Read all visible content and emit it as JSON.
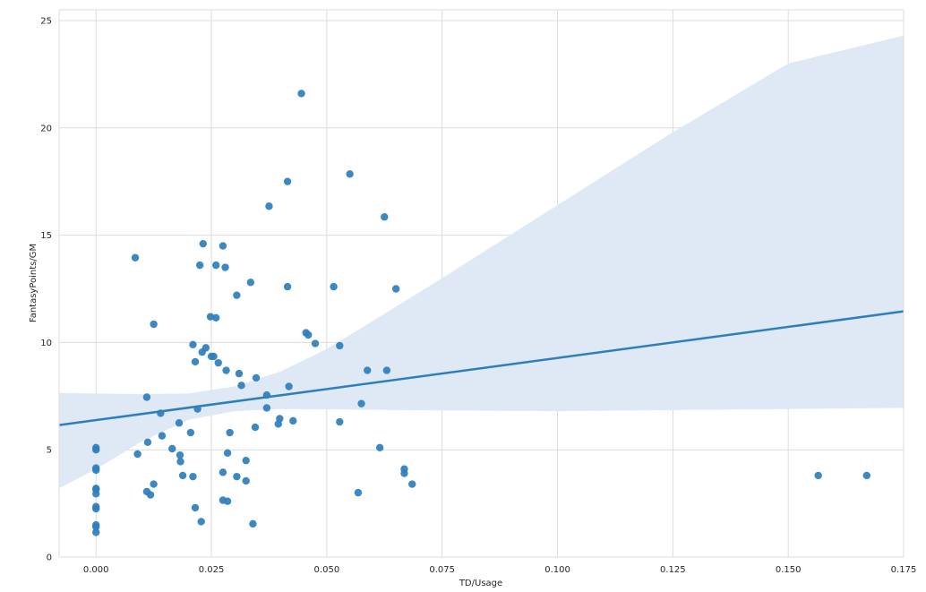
{
  "chart_data": {
    "type": "scatter",
    "title": "",
    "xlabel": "TD/Usage",
    "ylabel": "FantasyPoints/GM",
    "xlim": [
      -0.008,
      0.175
    ],
    "ylim": [
      0,
      25.5
    ],
    "xticks": [
      0.0,
      0.025,
      0.05,
      0.075,
      0.1,
      0.125,
      0.15,
      0.175
    ],
    "xtick_labels": [
      "0.000",
      "0.025",
      "0.050",
      "0.075",
      "0.100",
      "0.125",
      "0.150",
      "0.175"
    ],
    "yticks": [
      0,
      5,
      10,
      15,
      20,
      25
    ],
    "ytick_labels": [
      "0",
      "5",
      "10",
      "15",
      "20",
      "25"
    ],
    "grid": true,
    "colors": {
      "points": "#2e7ebc",
      "line": "#2e7ebc",
      "band": "#dce8f4",
      "grid": "#dcdcdc"
    },
    "points": [
      [
        0.0,
        5.1
      ],
      [
        0.0,
        5.0
      ],
      [
        0.0,
        4.15
      ],
      [
        0.0,
        4.05
      ],
      [
        0.0,
        3.2
      ],
      [
        0.0,
        3.15
      ],
      [
        0.0,
        2.95
      ],
      [
        0.0,
        2.35
      ],
      [
        0.0,
        2.25
      ],
      [
        0.0,
        1.5
      ],
      [
        0.0,
        1.4
      ],
      [
        0.0,
        1.15
      ],
      [
        0.0085,
        13.95
      ],
      [
        0.009,
        4.8
      ],
      [
        0.011,
        7.45
      ],
      [
        0.011,
        3.05
      ],
      [
        0.0112,
        5.35
      ],
      [
        0.0118,
        2.9
      ],
      [
        0.0125,
        10.85
      ],
      [
        0.0125,
        3.4
      ],
      [
        0.014,
        6.7
      ],
      [
        0.0143,
        5.65
      ],
      [
        0.0165,
        5.05
      ],
      [
        0.018,
        6.25
      ],
      [
        0.0182,
        4.75
      ],
      [
        0.0183,
        4.45
      ],
      [
        0.0188,
        3.8
      ],
      [
        0.0205,
        5.8
      ],
      [
        0.021,
        9.9
      ],
      [
        0.021,
        3.75
      ],
      [
        0.0215,
        9.1
      ],
      [
        0.0215,
        2.3
      ],
      [
        0.022,
        6.9
      ],
      [
        0.0225,
        13.6
      ],
      [
        0.0228,
        1.65
      ],
      [
        0.023,
        9.55
      ],
      [
        0.0232,
        14.6
      ],
      [
        0.0238,
        9.75
      ],
      [
        0.0248,
        11.2
      ],
      [
        0.025,
        9.35
      ],
      [
        0.0255,
        9.35
      ],
      [
        0.026,
        11.15
      ],
      [
        0.026,
        13.6
      ],
      [
        0.0265,
        9.05
      ],
      [
        0.0275,
        14.5
      ],
      [
        0.0275,
        3.95
      ],
      [
        0.0275,
        2.65
      ],
      [
        0.028,
        13.5
      ],
      [
        0.0282,
        8.7
      ],
      [
        0.0285,
        4.85
      ],
      [
        0.0285,
        2.6
      ],
      [
        0.029,
        5.8
      ],
      [
        0.0305,
        12.2
      ],
      [
        0.0305,
        3.75
      ],
      [
        0.031,
        8.55
      ],
      [
        0.0315,
        8.0
      ],
      [
        0.0325,
        4.5
      ],
      [
        0.0325,
        3.55
      ],
      [
        0.0335,
        12.8
      ],
      [
        0.034,
        1.55
      ],
      [
        0.0345,
        6.05
      ],
      [
        0.0347,
        8.35
      ],
      [
        0.037,
        7.55
      ],
      [
        0.037,
        6.95
      ],
      [
        0.0375,
        16.35
      ],
      [
        0.0395,
        6.2
      ],
      [
        0.0398,
        6.45
      ],
      [
        0.0415,
        17.5
      ],
      [
        0.0415,
        12.6
      ],
      [
        0.0418,
        7.95
      ],
      [
        0.0427,
        6.35
      ],
      [
        0.0445,
        21.6
      ],
      [
        0.0455,
        10.45
      ],
      [
        0.046,
        10.35
      ],
      [
        0.0475,
        9.95
      ],
      [
        0.0515,
        12.6
      ],
      [
        0.0528,
        9.85
      ],
      [
        0.0528,
        6.3
      ],
      [
        0.055,
        17.85
      ],
      [
        0.0568,
        3.0
      ],
      [
        0.0575,
        7.15
      ],
      [
        0.0588,
        8.7
      ],
      [
        0.0615,
        5.1
      ],
      [
        0.0625,
        15.85
      ],
      [
        0.063,
        8.7
      ],
      [
        0.065,
        12.5
      ],
      [
        0.0668,
        4.1
      ],
      [
        0.0668,
        3.9
      ],
      [
        0.0685,
        3.4
      ],
      [
        0.1565,
        3.8
      ],
      [
        0.167,
        3.8
      ]
    ],
    "regression_line": [
      [
        -0.008,
        6.15
      ],
      [
        0.175,
        11.45
      ]
    ],
    "confidence_band": {
      "x": [
        -0.008,
        0.0,
        0.01,
        0.02,
        0.03,
        0.04,
        0.05,
        0.06,
        0.075,
        0.1,
        0.125,
        0.15,
        0.175
      ],
      "upper": [
        7.65,
        7.62,
        7.6,
        7.62,
        7.95,
        8.65,
        9.7,
        11.0,
        13.0,
        16.4,
        19.8,
        23.0,
        24.3
      ],
      "lower": [
        3.2,
        4.1,
        5.4,
        6.4,
        6.8,
        6.9,
        6.88,
        6.86,
        6.83,
        6.8,
        6.85,
        6.9,
        6.95
      ]
    }
  }
}
